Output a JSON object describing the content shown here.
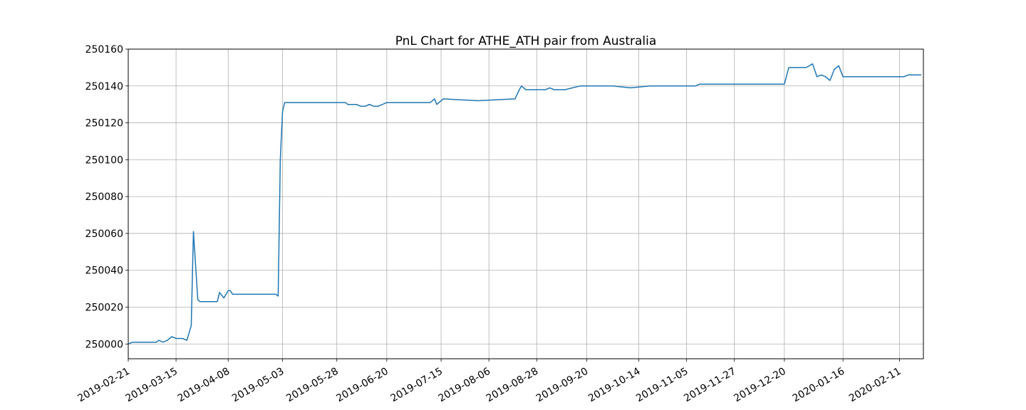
{
  "chart_data": {
    "type": "line",
    "title": "PnL Chart for ATHE_ATH pair from Australia",
    "xlabel": "",
    "ylabel": "",
    "grid": true,
    "legend": "none",
    "x_type": "date",
    "xlim": [
      "2019-02-21",
      "2020-02-22"
    ],
    "ylim": [
      249992,
      250160
    ],
    "y_ticks": [
      250000,
      250020,
      250040,
      250060,
      250080,
      250100,
      250120,
      250140,
      250160
    ],
    "x_ticks": [
      "2019-02-21",
      "2019-03-15",
      "2019-04-08",
      "2019-05-03",
      "2019-05-28",
      "2019-06-20",
      "2019-07-15",
      "2019-08-06",
      "2019-08-28",
      "2019-09-20",
      "2019-10-14",
      "2019-11-05",
      "2019-11-27",
      "2019-12-20",
      "2020-01-16",
      "2020-02-11"
    ],
    "series": [
      {
        "color": "#1f77b4",
        "x": [
          "2019-02-21",
          "2019-02-23",
          "2019-02-24",
          "2019-02-26",
          "2019-02-28",
          "2019-03-01",
          "2019-03-03",
          "2019-03-04",
          "2019-03-06",
          "2019-03-07",
          "2019-03-09",
          "2019-03-11",
          "2019-03-12",
          "2019-03-13",
          "2019-03-15",
          "2019-03-16",
          "2019-03-18",
          "2019-03-20",
          "2019-03-22",
          "2019-03-23",
          "2019-03-25",
          "2019-03-26",
          "2019-03-27",
          "2019-03-29",
          "2019-04-03",
          "2019-04-04",
          "2019-04-06",
          "2019-04-08",
          "2019-04-09",
          "2019-04-10",
          "2019-04-14",
          "2019-04-22",
          "2019-04-25",
          "2019-04-30",
          "2019-05-01",
          "2019-05-02",
          "2019-05-03",
          "2019-05-04",
          "2019-05-06",
          "2019-05-07",
          "2019-05-08",
          "2019-05-10",
          "2019-06-01",
          "2019-06-02",
          "2019-06-04",
          "2019-06-06",
          "2019-06-08",
          "2019-06-10",
          "2019-06-12",
          "2019-06-14",
          "2019-06-16",
          "2019-06-18",
          "2019-06-20",
          "2019-06-22",
          "2019-06-24",
          "2019-06-26",
          "2019-06-28",
          "2019-06-30",
          "2019-07-02",
          "2019-07-04",
          "2019-07-06",
          "2019-07-08",
          "2019-07-10",
          "2019-07-12",
          "2019-07-13",
          "2019-07-16",
          "2019-08-01",
          "2019-08-18",
          "2019-08-20",
          "2019-08-21",
          "2019-08-23",
          "2019-08-24",
          "2019-08-26",
          "2019-08-28",
          "2019-08-30",
          "2019-09-01",
          "2019-09-03",
          "2019-09-05",
          "2019-09-10",
          "2019-09-17",
          "2019-09-20",
          "2019-09-22",
          "2019-09-24",
          "2019-09-25",
          "2019-09-26",
          "2019-09-28",
          "2019-09-30",
          "2019-10-02",
          "2019-10-10",
          "2019-10-19",
          "2019-10-21",
          "2019-10-23",
          "2019-10-25",
          "2019-10-27",
          "2019-10-29",
          "2019-11-01",
          "2019-11-03",
          "2019-11-05",
          "2019-11-09",
          "2019-11-11",
          "2019-11-13",
          "2019-11-15",
          "2019-11-18",
          "2019-11-21",
          "2019-12-01",
          "2019-12-15",
          "2019-12-20",
          "2019-12-22",
          "2019-12-24",
          "2019-12-26",
          "2019-12-28",
          "2019-12-30",
          "2020-01-02",
          "2020-01-04",
          "2020-01-06",
          "2020-01-08",
          "2020-01-10",
          "2020-01-12",
          "2020-01-14",
          "2020-01-16",
          "2020-01-18",
          "2020-02-11",
          "2020-02-13",
          "2020-02-15",
          "2020-02-17",
          "2020-02-19",
          "2020-02-21"
        ],
        "y": [
          250000,
          250001,
          250001,
          250001,
          250001,
          250001,
          250001,
          250001,
          250001,
          250002,
          250001,
          250002,
          250003,
          250004,
          250003,
          250003,
          250003,
          250002,
          250010,
          250061,
          250024,
          250023,
          250023,
          250023,
          250023,
          250028,
          250025,
          250029,
          250029,
          250027,
          250027,
          250027,
          250027,
          250027,
          250026,
          250100,
          250126,
          250131,
          250131,
          250131,
          250131,
          250131,
          250131,
          250130,
          250130,
          250130,
          250129,
          250129,
          250130,
          250129,
          250129,
          250130,
          250131,
          250131,
          250131,
          250131,
          250131,
          250131,
          250131,
          250131,
          250131,
          250131,
          250131,
          250133,
          250130,
          250133,
          250132,
          250133,
          250138,
          250140,
          250138,
          250138,
          250138,
          250138,
          250138,
          250138,
          250139,
          250138,
          250138,
          250140,
          250140,
          250140,
          250140,
          250140,
          250140,
          250140,
          250140,
          250140,
          250139,
          250140,
          250140,
          250140,
          250140,
          250140,
          250140,
          250140,
          250140,
          250140,
          250140,
          250141,
          250141,
          250141,
          250141,
          250141,
          250141,
          250141,
          250141,
          250150,
          250150,
          250150,
          250150,
          250150,
          250152,
          250145,
          250146,
          250145,
          250143,
          250149,
          250151,
          250145,
          250145,
          250145,
          250145,
          250146,
          250146,
          250146,
          250146
        ]
      }
    ]
  }
}
